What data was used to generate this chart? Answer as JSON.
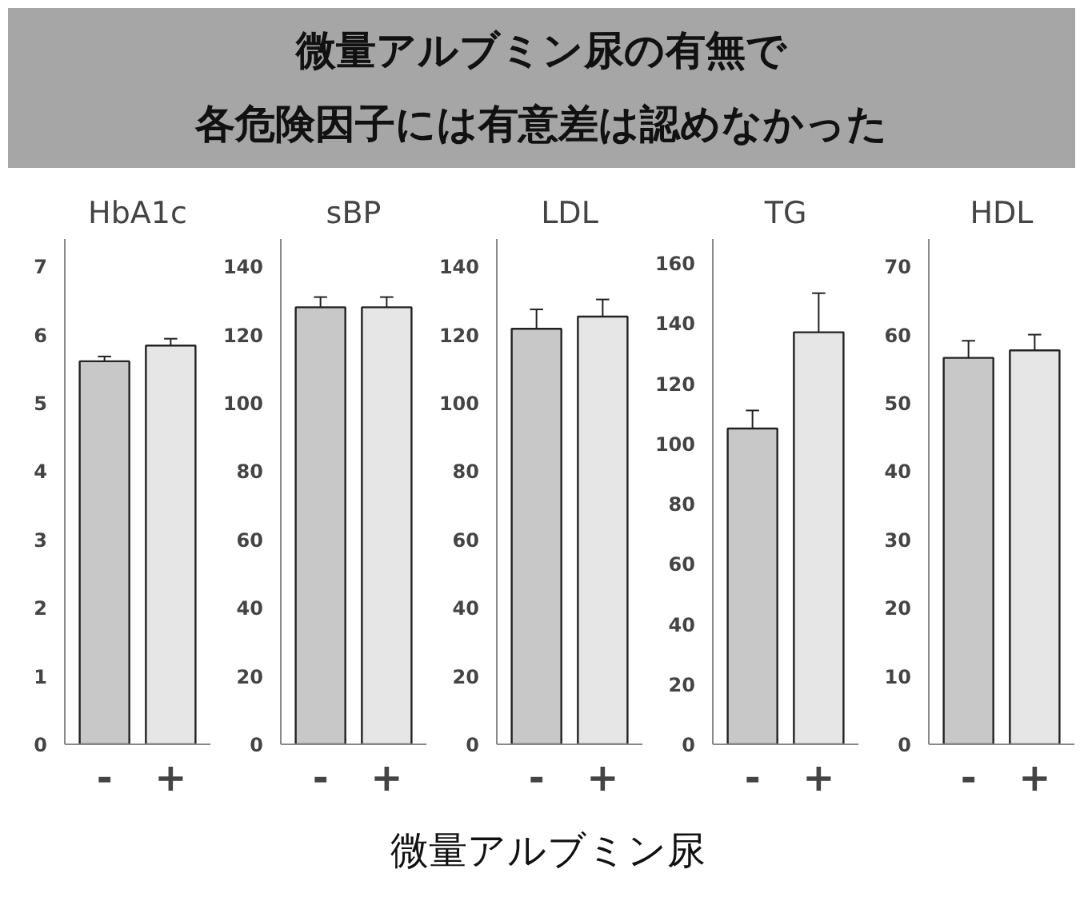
{
  "chart_data": [
    {
      "type": "bar",
      "title": "HbA1c",
      "annotations": [
        "微量アルブミン尿の有無で",
        "各危険因子には有意差は認めなかった"
      ],
      "categories": [
        "-",
        "+"
      ],
      "values": [
        5.61,
        5.84
      ],
      "errors": [
        [
          5.61,
          5.68
        ],
        [
          5.84,
          5.94
        ]
      ],
      "colors": [
        "#c8c8c8",
        "#e6e6e6"
      ],
      "ylim": [
        0,
        7.4
      ],
      "yticks": [
        0,
        1,
        2,
        3,
        4,
        5,
        6,
        7
      ],
      "grid": false
    },
    {
      "type": "bar",
      "title": "sBP",
      "categories": [
        "-",
        "+"
      ],
      "values": [
        128,
        128
      ],
      "errors": [
        [
          128,
          131
        ],
        [
          128,
          131
        ]
      ],
      "colors": [
        "#c8c8c8",
        "#e6e6e6"
      ],
      "ylim": [
        0,
        148
      ],
      "yticks": [
        0,
        20,
        40,
        60,
        80,
        100,
        120,
        140
      ],
      "grid": false
    },
    {
      "type": "bar",
      "title": "LDL",
      "xlabel": "微量アルブミン尿",
      "categories": [
        "-",
        "+"
      ],
      "values": [
        121.7,
        125.3
      ],
      "errors": [
        [
          121.7,
          127.4
        ],
        [
          125.3,
          130.3
        ]
      ],
      "colors": [
        "#c8c8c8",
        "#e6e6e6"
      ],
      "ylim": [
        0,
        148
      ],
      "yticks": [
        0,
        20,
        40,
        60,
        80,
        100,
        120,
        140
      ],
      "grid": false
    },
    {
      "type": "bar",
      "title": "TG",
      "categories": [
        "-",
        "+"
      ],
      "values": [
        105,
        137
      ],
      "errors": [
        [
          105,
          111
        ],
        [
          137,
          150
        ]
      ],
      "colors": [
        "#c8c8c8",
        "#e6e6e6"
      ],
      "ylim": [
        0,
        168
      ],
      "yticks": [
        0,
        20,
        40,
        60,
        80,
        100,
        120,
        140,
        160
      ],
      "grid": false
    },
    {
      "type": "bar",
      "title": "HDL",
      "categories": [
        "-",
        "+"
      ],
      "values": [
        56.6,
        57.7
      ],
      "errors": [
        [
          56.6,
          59.1
        ],
        [
          57.7,
          60.0
        ]
      ],
      "colors": [
        "#c8c8c8",
        "#e6e6e6"
      ],
      "ylim": [
        0,
        74
      ],
      "yticks": [
        0,
        10,
        20,
        30,
        40,
        50,
        60,
        70
      ],
      "grid": false
    }
  ]
}
